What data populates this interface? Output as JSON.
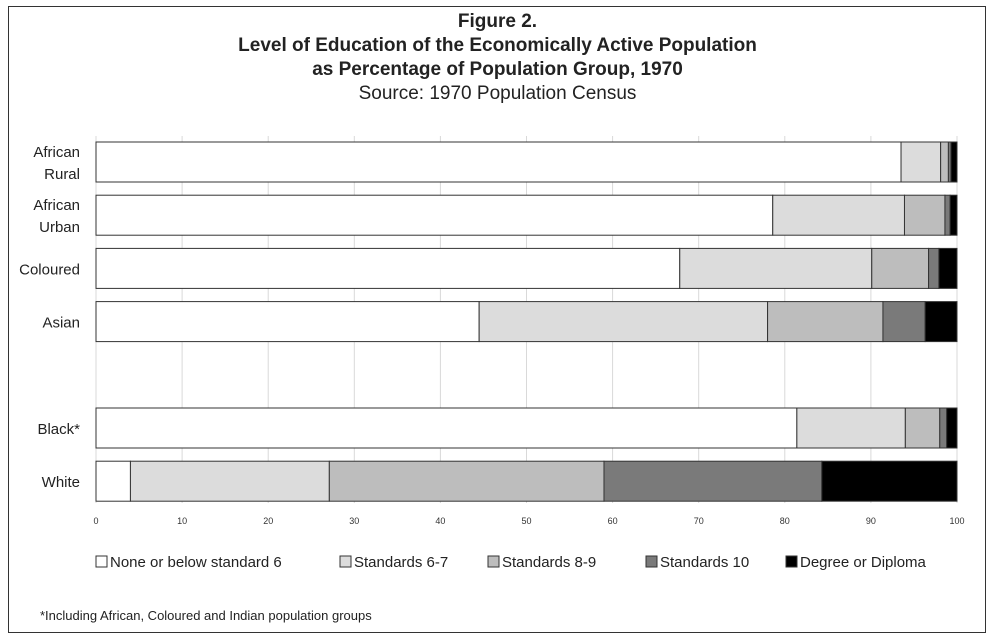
{
  "chart_data": {
    "type": "bar",
    "orientation": "horizontal",
    "stacked": true,
    "title_lines": [
      "Figure 2.",
      "Level of Education of the Economically Active Population",
      "as Percentage of Population Group, 1970"
    ],
    "subtitle": "Source: 1970 Population Census",
    "categories": [
      {
        "lines": [
          "African",
          "Rural"
        ]
      },
      {
        "lines": [
          "African",
          "Urban"
        ]
      },
      {
        "lines": [
          "Coloured"
        ]
      },
      {
        "lines": [
          "Asian"
        ]
      },
      {
        "lines": []
      },
      {
        "lines": [
          "Black*"
        ]
      },
      {
        "lines": [
          "White"
        ]
      }
    ],
    "series": [
      {
        "name": "None or below standard 6",
        "color": "#ffffff",
        "values": [
          93.5,
          78.6,
          67.8,
          44.5,
          null,
          81.4,
          4.0
        ]
      },
      {
        "name": "Standards 6-7",
        "color": "#dcdcdc",
        "values": [
          4.6,
          15.3,
          22.3,
          33.5,
          null,
          12.6,
          23.1
        ]
      },
      {
        "name": "Standards 8-9",
        "color": "#bdbdbd",
        "values": [
          0.9,
          4.7,
          6.6,
          13.4,
          null,
          4.0,
          31.9
        ]
      },
      {
        "name": "Standards 10",
        "color": "#7a7a7a",
        "values": [
          0.3,
          0.6,
          1.2,
          4.9,
          null,
          0.8,
          25.3
        ]
      },
      {
        "name": "Degree or Diploma",
        "color": "#000000",
        "values": [
          0.7,
          0.8,
          2.1,
          3.7,
          null,
          1.2,
          15.7
        ]
      }
    ],
    "xlim": [
      0,
      100
    ],
    "xticks": [
      "0",
      "10",
      "20",
      "30",
      "40",
      "50",
      "60",
      "70",
      "80",
      "90",
      "100"
    ],
    "grid": true,
    "legend_position": "bottom"
  },
  "footnote": "*Including African, Coloured and Indian population groups"
}
